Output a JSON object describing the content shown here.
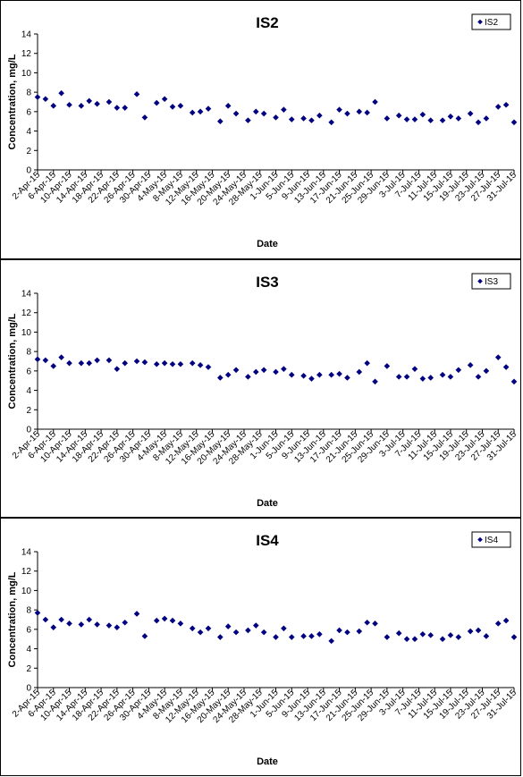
{
  "chart_data": [
    {
      "type": "scatter",
      "title": "IS2",
      "xlabel": "Date",
      "ylabel": "Concentration, mg/L",
      "ylim": [
        0,
        14
      ],
      "yticks": [
        "0",
        "2",
        "4",
        "6",
        "8",
        "10",
        "12",
        "14"
      ],
      "xticks": [
        "2-Apr-15",
        "6-Apr-15",
        "10-Apr-15",
        "14-Apr-15",
        "18-Apr-15",
        "22-Apr-15",
        "26-Apr-15",
        "30-Apr-15",
        "4-May-15",
        "8-May-15",
        "12-May-15",
        "16-May-15",
        "20-May-15",
        "24-May-15",
        "28-May-15",
        "1-Jun-15",
        "5-Jun-15",
        "9-Jun-15",
        "13-Jun-15",
        "17-Jun-15",
        "21-Jun-15",
        "25-Jun-15",
        "29-Jun-15",
        "3-Jul-15",
        "7-Jul-15",
        "11-Jul-15",
        "15-Jul-15",
        "19-Jul-15",
        "23-Jul-15",
        "27-Jul-15",
        "31-Jul-15"
      ],
      "grid": false,
      "legend": "top-right",
      "marker_color": "#000080",
      "series": [
        {
          "name": "IS2",
          "x": [
            "2-Apr-15",
            "4-Apr-15",
            "6-Apr-15",
            "8-Apr-15",
            "10-Apr-15",
            "13-Apr-15",
            "15-Apr-15",
            "17-Apr-15",
            "20-Apr-15",
            "22-Apr-15",
            "24-Apr-15",
            "27-Apr-15",
            "29-Apr-15",
            "2-May-15",
            "4-May-15",
            "6-May-15",
            "8-May-15",
            "11-May-15",
            "13-May-15",
            "15-May-15",
            "18-May-15",
            "20-May-15",
            "22-May-15",
            "25-May-15",
            "27-May-15",
            "29-May-15",
            "1-Jun-15",
            "3-Jun-15",
            "5-Jun-15",
            "8-Jun-15",
            "10-Jun-15",
            "12-Jun-15",
            "15-Jun-15",
            "17-Jun-15",
            "19-Jun-15",
            "22-Jun-15",
            "24-Jun-15",
            "26-Jun-15",
            "29-Jun-15",
            "2-Jul-15",
            "4-Jul-15",
            "6-Jul-15",
            "8-Jul-15",
            "10-Jul-15",
            "13-Jul-15",
            "15-Jul-15",
            "17-Jul-15",
            "20-Jul-15",
            "22-Jul-15",
            "24-Jul-15",
            "27-Jul-15",
            "29-Jul-15",
            "31-Jul-15"
          ],
          "y": [
            7.5,
            7.3,
            6.6,
            7.9,
            6.7,
            6.6,
            7.1,
            6.8,
            7.0,
            6.4,
            6.4,
            7.8,
            5.4,
            6.9,
            7.3,
            6.5,
            6.6,
            5.9,
            6.0,
            6.3,
            5.0,
            6.6,
            5.8,
            5.1,
            6.0,
            5.8,
            5.4,
            6.2,
            5.2,
            5.3,
            5.1,
            5.6,
            4.9,
            6.2,
            5.8,
            6.0,
            5.9,
            7.0,
            5.3,
            5.6,
            5.2,
            5.2,
            5.7,
            5.1,
            5.1,
            5.5,
            5.3,
            5.8,
            4.9,
            5.3,
            6.5,
            6.7,
            4.9
          ]
        }
      ]
    },
    {
      "type": "scatter",
      "title": "IS3",
      "xlabel": "Date",
      "ylabel": "Concentration, mg/L",
      "ylim": [
        0,
        14
      ],
      "yticks": [
        "0",
        "2",
        "4",
        "6",
        "8",
        "10",
        "12",
        "14"
      ],
      "xticks": [
        "2-Apr-15",
        "6-Apr-15",
        "10-Apr-15",
        "14-Apr-15",
        "18-Apr-15",
        "22-Apr-15",
        "26-Apr-15",
        "30-Apr-15",
        "4-May-15",
        "8-May-15",
        "12-May-15",
        "16-May-15",
        "20-May-15",
        "24-May-15",
        "28-May-15",
        "1-Jun-15",
        "5-Jun-15",
        "9-Jun-15",
        "13-Jun-15",
        "17-Jun-15",
        "21-Jun-15",
        "25-Jun-15",
        "29-Jun-15",
        "3-Jul-15",
        "7-Jul-15",
        "11-Jul-15",
        "15-Jul-15",
        "19-Jul-15",
        "23-Jul-15",
        "27-Jul-15",
        "31-Jul-15"
      ],
      "grid": false,
      "legend": "top-right",
      "marker_color": "#000080",
      "series": [
        {
          "name": "IS3",
          "x": [
            "2-Apr-15",
            "4-Apr-15",
            "6-Apr-15",
            "8-Apr-15",
            "10-Apr-15",
            "13-Apr-15",
            "15-Apr-15",
            "17-Apr-15",
            "20-Apr-15",
            "22-Apr-15",
            "24-Apr-15",
            "27-Apr-15",
            "29-Apr-15",
            "2-May-15",
            "4-May-15",
            "6-May-15",
            "8-May-15",
            "11-May-15",
            "13-May-15",
            "15-May-15",
            "18-May-15",
            "20-May-15",
            "22-May-15",
            "25-May-15",
            "27-May-15",
            "29-May-15",
            "1-Jun-15",
            "3-Jun-15",
            "5-Jun-15",
            "8-Jun-15",
            "10-Jun-15",
            "12-Jun-15",
            "15-Jun-15",
            "17-Jun-15",
            "19-Jun-15",
            "22-Jun-15",
            "24-Jun-15",
            "26-Jun-15",
            "29-Jun-15",
            "2-Jul-15",
            "4-Jul-15",
            "6-Jul-15",
            "8-Jul-15",
            "10-Jul-15",
            "13-Jul-15",
            "15-Jul-15",
            "17-Jul-15",
            "20-Jul-15",
            "22-Jul-15",
            "24-Jul-15",
            "27-Jul-15",
            "29-Jul-15",
            "31-Jul-15"
          ],
          "y": [
            7.2,
            7.1,
            6.5,
            7.4,
            6.8,
            6.8,
            6.8,
            7.1,
            7.1,
            6.2,
            6.8,
            7.0,
            6.9,
            6.7,
            6.8,
            6.7,
            6.7,
            6.8,
            6.6,
            6.4,
            5.3,
            5.6,
            6.1,
            5.4,
            5.9,
            6.1,
            5.9,
            6.2,
            5.6,
            5.5,
            5.2,
            5.6,
            5.6,
            5.7,
            5.3,
            5.9,
            6.8,
            4.9,
            6.5,
            5.4,
            5.4,
            6.2,
            5.2,
            5.3,
            5.6,
            5.4,
            6.1,
            6.6,
            5.4,
            6.0,
            7.4,
            6.4,
            4.9
          ]
        }
      ]
    },
    {
      "type": "scatter",
      "title": "IS4",
      "xlabel": "Date",
      "ylabel": "Concentration, mg/L",
      "ylim": [
        0,
        14
      ],
      "yticks": [
        "0",
        "2",
        "4",
        "6",
        "8",
        "10",
        "12",
        "14"
      ],
      "xticks": [
        "2-Apr-15",
        "6-Apr-15",
        "10-Apr-15",
        "14-Apr-15",
        "18-Apr-15",
        "22-Apr-15",
        "26-Apr-15",
        "30-Apr-15",
        "4-May-15",
        "8-May-15",
        "12-May-15",
        "16-May-15",
        "20-May-15",
        "24-May-15",
        "28-May-15",
        "1-Jun-15",
        "5-Jun-15",
        "9-Jun-15",
        "13-Jun-15",
        "17-Jun-15",
        "21-Jun-15",
        "25-Jun-15",
        "29-Jun-15",
        "3-Jul-15",
        "7-Jul-15",
        "11-Jul-15",
        "15-Jul-15",
        "19-Jul-15",
        "23-Jul-15",
        "27-Jul-15",
        "31-Jul-15"
      ],
      "grid": false,
      "legend": "top-right",
      "marker_color": "#000080",
      "series": [
        {
          "name": "IS4",
          "x": [
            "2-Apr-15",
            "4-Apr-15",
            "6-Apr-15",
            "8-Apr-15",
            "10-Apr-15",
            "13-Apr-15",
            "15-Apr-15",
            "17-Apr-15",
            "20-Apr-15",
            "22-Apr-15",
            "24-Apr-15",
            "27-Apr-15",
            "29-Apr-15",
            "2-May-15",
            "4-May-15",
            "6-May-15",
            "8-May-15",
            "11-May-15",
            "13-May-15",
            "15-May-15",
            "18-May-15",
            "20-May-15",
            "22-May-15",
            "25-May-15",
            "27-May-15",
            "29-May-15",
            "1-Jun-15",
            "3-Jun-15",
            "5-Jun-15",
            "8-Jun-15",
            "10-Jun-15",
            "12-Jun-15",
            "15-Jun-15",
            "17-Jun-15",
            "19-Jun-15",
            "22-Jun-15",
            "24-Jun-15",
            "26-Jun-15",
            "29-Jun-15",
            "2-Jul-15",
            "4-Jul-15",
            "6-Jul-15",
            "8-Jul-15",
            "10-Jul-15",
            "13-Jul-15",
            "15-Jul-15",
            "17-Jul-15",
            "20-Jul-15",
            "22-Jul-15",
            "24-Jul-15",
            "27-Jul-15",
            "29-Jul-15",
            "31-Jul-15"
          ],
          "y": [
            7.7,
            7.0,
            6.2,
            7.0,
            6.6,
            6.5,
            7.0,
            6.5,
            6.4,
            6.2,
            6.7,
            7.6,
            5.3,
            6.9,
            7.1,
            6.9,
            6.6,
            6.1,
            5.7,
            6.1,
            5.2,
            6.3,
            5.7,
            5.9,
            6.4,
            5.7,
            5.2,
            6.1,
            5.2,
            5.3,
            5.3,
            5.5,
            4.8,
            5.9,
            5.7,
            5.8,
            6.7,
            6.6,
            5.2,
            5.6,
            5.0,
            5.0,
            5.5,
            5.4,
            5.0,
            5.4,
            5.2,
            5.8,
            5.9,
            5.3,
            6.6,
            6.9,
            5.2
          ]
        }
      ]
    }
  ]
}
